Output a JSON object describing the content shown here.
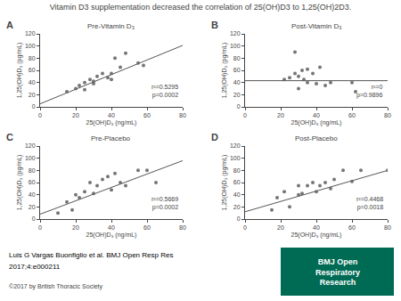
{
  "title": "Vitamin D3 supplementation decreased the correlation of 25(OH)D3 to 1,25(OH)2D3.",
  "annotations": [
    {
      "text": "Luis G Vargas Buonfiglio et al. BMJ Open Resp Res",
      "color": "#000000"
    },
    {
      "text": "2017;4:e000211",
      "color": "#000000"
    },
    {
      "text": "©2017 by British Thoracic Society",
      "color": "#444444"
    },
    {
      "text": "BMJ Open\nRespiratory\nResearch",
      "color": "#006B54"
    }
  ],
  "chart_data": [
    {
      "type": "scatter",
      "title": "A",
      "subtitle": "Pre-Vitamin D₃",
      "annotations": [
        "r²=0.5295",
        "p=0.0002"
      ],
      "xlabel": "25(OH)D₃ (ng/mL)",
      "ylabel": "1,25(OH)D₃ (pg/mL)",
      "x": [
        15,
        20,
        22,
        25,
        25,
        28,
        30,
        30,
        32,
        35,
        38,
        40,
        40,
        42,
        45,
        48,
        55,
        58
      ],
      "values": [
        25,
        30,
        35,
        40,
        28,
        45,
        42,
        38,
        50,
        55,
        48,
        55,
        45,
        80,
        65,
        88,
        72,
        68
      ],
      "color": "#666666",
      "fit": {
        "x": [
          0,
          80
        ],
        "values": [
          5,
          101
        ],
        "color": "#555555"
      },
      "xlim": [
        0,
        80
      ],
      "ylim": [
        0,
        120
      ],
      "xticks": [
        0,
        20,
        40,
        60,
        80
      ],
      "yticks": [
        0,
        20,
        40,
        60,
        80,
        100,
        120
      ],
      "grid": false
    },
    {
      "type": "scatter",
      "title": "B",
      "subtitle": "Post-Vitamin D₃",
      "annotations": [
        "r²=0",
        "p=0.9896"
      ],
      "xlabel": "25(OH)D₃ (ng/mL)",
      "ylabel": "1,25(OH)D₃ (pg/mL)",
      "x": [
        22,
        25,
        28,
        30,
        30,
        32,
        33,
        35,
        35,
        38,
        40,
        42,
        45,
        48,
        60,
        62,
        28
      ],
      "values": [
        45,
        48,
        55,
        50,
        30,
        60,
        45,
        62,
        40,
        55,
        38,
        65,
        35,
        40,
        40,
        25,
        90
      ],
      "color": "#666666",
      "fit": {
        "x": [
          0,
          80
        ],
        "values": [
          43,
          43
        ],
        "color": "#555555"
      },
      "xlim": [
        0,
        80
      ],
      "ylim": [
        0,
        120
      ],
      "xticks": [
        0,
        20,
        40,
        60,
        80
      ],
      "yticks": [
        0,
        20,
        40,
        60,
        80,
        100,
        120
      ],
      "grid": false
    },
    {
      "type": "scatter",
      "title": "C",
      "subtitle": "Pre-Placebo",
      "annotations": [
        "r²=0.5669",
        "p=0.0002"
      ],
      "xlabel": "25(OH)D₃ (ng/mL)",
      "ylabel": "1,25(OH)D₃ (pg/mL)",
      "x": [
        10,
        15,
        18,
        20,
        22,
        25,
        28,
        30,
        32,
        35,
        38,
        40,
        42,
        45,
        48,
        55,
        60,
        65
      ],
      "values": [
        10,
        28,
        15,
        40,
        35,
        45,
        60,
        42,
        55,
        65,
        70,
        48,
        75,
        60,
        55,
        80,
        80,
        60
      ],
      "color": "#666666",
      "fit": {
        "x": [
          0,
          80
        ],
        "values": [
          8,
          96
        ],
        "color": "#555555"
      },
      "xlim": [
        0,
        80
      ],
      "ylim": [
        0,
        120
      ],
      "xticks": [
        0,
        20,
        40,
        60,
        80
      ],
      "yticks": [
        0,
        20,
        40,
        60,
        80,
        100,
        120
      ],
      "grid": false
    },
    {
      "type": "scatter",
      "title": "D",
      "subtitle": "Post-Placebo",
      "annotations": [
        "r²=0.4468",
        "p=0.0018"
      ],
      "xlabel": "25(OH)D₃ (ng/mL)",
      "ylabel": "1,25(OH)D₃ (pg/mL)",
      "x": [
        15,
        18,
        22,
        25,
        30,
        30,
        32,
        35,
        38,
        40,
        42,
        45,
        48,
        50,
        55,
        60,
        65,
        80
      ],
      "values": [
        15,
        35,
        45,
        20,
        40,
        55,
        42,
        55,
        60,
        45,
        55,
        60,
        50,
        65,
        80,
        62,
        80,
        80
      ],
      "color": "#666666",
      "fit": {
        "x": [
          0,
          80
        ],
        "values": [
          12,
          80
        ],
        "color": "#555555"
      },
      "xlim": [
        0,
        80
      ],
      "ylim": [
        0,
        120
      ],
      "xticks": [
        0,
        20,
        40,
        60,
        80
      ],
      "yticks": [
        0,
        20,
        40,
        60,
        80,
        100,
        120
      ],
      "grid": false
    }
  ]
}
